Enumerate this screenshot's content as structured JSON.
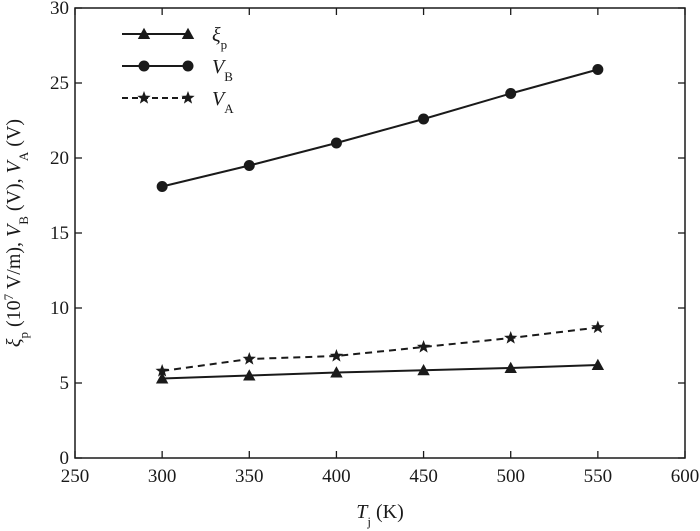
{
  "chart_data": {
    "type": "line",
    "xlabel": {
      "main": "T",
      "sub": "j",
      "unit": "(K)"
    },
    "ylabel": {
      "parts": [
        {
          "text": "ξ",
          "italic": true
        },
        {
          "text": "p",
          "sub": true
        },
        {
          "text": " (10"
        },
        {
          "text": "7",
          "sup": true
        },
        {
          "text": " V/m), "
        },
        {
          "text": "V",
          "italic": true
        },
        {
          "text": "B",
          "sub": true
        },
        {
          "text": " (V), "
        },
        {
          "text": "V",
          "italic": true
        },
        {
          "text": "A",
          "sub": true
        },
        {
          "text": " (V)"
        }
      ]
    },
    "xlim": [
      250,
      600
    ],
    "ylim": [
      0,
      30
    ],
    "xticks": [
      "250",
      "300",
      "350",
      "400",
      "450",
      "500",
      "550",
      "600"
    ],
    "yticks": [
      "0",
      "5",
      "10",
      "15",
      "20",
      "25",
      "30"
    ],
    "grid": false,
    "legend_position": "top-left",
    "x": [
      300,
      350,
      400,
      450,
      500,
      550
    ],
    "series": [
      {
        "key": "xi_p",
        "label_main": "ξ",
        "label_sub": "p",
        "marker": "triangle",
        "line": "solid",
        "values": [
          5.3,
          5.5,
          5.7,
          5.85,
          6.0,
          6.2
        ]
      },
      {
        "key": "V_B",
        "label_main": "V",
        "label_sub": "B",
        "marker": "circle",
        "line": "solid",
        "values": [
          18.1,
          19.5,
          21.0,
          22.6,
          24.3,
          25.9
        ]
      },
      {
        "key": "V_A",
        "label_main": "V",
        "label_sub": "A",
        "marker": "star",
        "line": "dashed",
        "values": [
          5.8,
          6.6,
          6.8,
          7.4,
          8.0,
          8.7
        ]
      }
    ],
    "colors": {
      "line": "#1a1a1a",
      "axis": "#1a1a1a",
      "background": "#ffffff"
    }
  }
}
